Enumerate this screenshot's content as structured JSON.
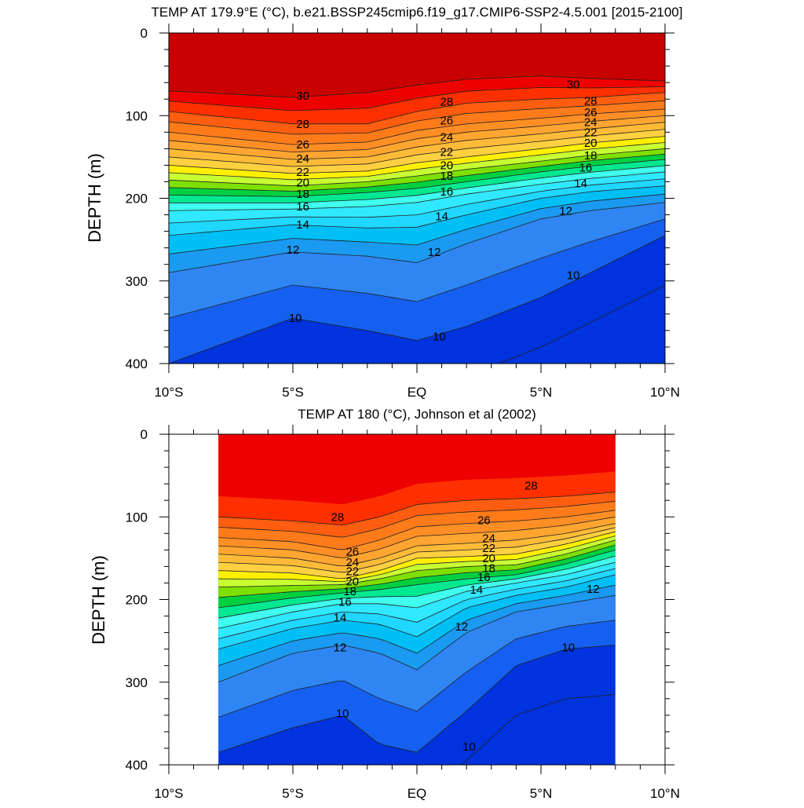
{
  "chart_data": [
    {
      "type": "contour",
      "title": "TEMP AT 179.9°E (°C), b.e21.BSSP245cmip6.f19_g17.CMIP6-SSP2-4.5.001 [2015-2100]",
      "ylabel": "DEPTH (m)",
      "xlabel": "",
      "xlim": [
        -10,
        10
      ],
      "ylim": [
        0,
        400
      ],
      "y_reversed": true,
      "x_ticks": [
        -10,
        -5,
        0,
        5,
        10
      ],
      "x_tick_labels": [
        "10°S",
        "5°S",
        "EQ",
        "5°N",
        "10°N"
      ],
      "y_ticks": [
        0,
        100,
        200,
        300,
        400
      ],
      "y_tick_labels": [
        "0",
        "100",
        "200",
        "300",
        "400"
      ],
      "contour_interval": 1,
      "levels_labeled": [
        10,
        12,
        14,
        16,
        18,
        20,
        22,
        24,
        26,
        28,
        30
      ],
      "data_xrange": [
        -10,
        10
      ],
      "isotherms": [
        {
          "level": 30,
          "x": [
            -10,
            -5,
            -2,
            0,
            2,
            5,
            7,
            10
          ],
          "depth": [
            70,
            78,
            72,
            63,
            56,
            52,
            55,
            58
          ]
        },
        {
          "level": 28,
          "x": [
            -10,
            -5,
            -2,
            0,
            2,
            5,
            7,
            10
          ],
          "depth": [
            95,
            110,
            110,
            95,
            85,
            80,
            78,
            72
          ]
        },
        {
          "level": 26,
          "x": [
            -10,
            -5,
            -2,
            0,
            2,
            5,
            7,
            10
          ],
          "depth": [
            120,
            135,
            132,
            118,
            110,
            103,
            98,
            92
          ]
        },
        {
          "level": 24,
          "x": [
            -10,
            -5,
            -2,
            0,
            2,
            5,
            7,
            10
          ],
          "depth": [
            140,
            153,
            150,
            138,
            130,
            122,
            116,
            108
          ]
        },
        {
          "level": 22,
          "x": [
            -10,
            -5,
            -2,
            0,
            2,
            5,
            7,
            10
          ],
          "depth": [
            160,
            170,
            167,
            157,
            150,
            140,
            133,
            125
          ]
        },
        {
          "level": 20,
          "x": [
            -10,
            -5,
            -2,
            0,
            2,
            5,
            7,
            10
          ],
          "depth": [
            178,
            185,
            180,
            173,
            165,
            155,
            148,
            140
          ]
        },
        {
          "level": 18,
          "x": [
            -10,
            -5,
            -2,
            0,
            2,
            5,
            7,
            10
          ],
          "depth": [
            196,
            198,
            193,
            188,
            180,
            168,
            161,
            153
          ]
        },
        {
          "level": 16,
          "x": [
            -10,
            -5,
            -2,
            0,
            2,
            5,
            7,
            10
          ],
          "depth": [
            215,
            213,
            210,
            205,
            195,
            183,
            176,
            168
          ]
        },
        {
          "level": 14,
          "x": [
            -10,
            -5,
            -2,
            0,
            2,
            5,
            7,
            10
          ],
          "depth": [
            245,
            232,
            236,
            235,
            220,
            200,
            192,
            185
          ]
        },
        {
          "level": 12,
          "x": [
            -10,
            -5,
            -2,
            0,
            2,
            5,
            7,
            10
          ],
          "depth": [
            290,
            265,
            270,
            278,
            255,
            225,
            215,
            205
          ]
        },
        {
          "level": 10,
          "x": [
            -10,
            -5,
            -2,
            0,
            2,
            5,
            7,
            10
          ],
          "depth": [
            400,
            345,
            360,
            372,
            355,
            320,
            290,
            245
          ]
        }
      ],
      "labels": [
        {
          "level": 30,
          "x": -4.6,
          "depth": 76
        },
        {
          "level": 30,
          "x": 6.3,
          "depth": 62
        },
        {
          "level": 28,
          "x": -4.6,
          "depth": 110
        },
        {
          "level": 28,
          "x": 1.2,
          "depth": 83
        },
        {
          "level": 28,
          "x": 7.0,
          "depth": 82
        },
        {
          "level": 26,
          "x": -4.6,
          "depth": 135
        },
        {
          "level": 26,
          "x": 1.2,
          "depth": 106
        },
        {
          "level": 26,
          "x": 7.0,
          "depth": 96
        },
        {
          "level": 24,
          "x": -4.6,
          "depth": 152
        },
        {
          "level": 24,
          "x": 1.2,
          "depth": 126
        },
        {
          "level": 24,
          "x": 7.0,
          "depth": 108
        },
        {
          "level": 22,
          "x": -4.6,
          "depth": 168
        },
        {
          "level": 22,
          "x": 1.2,
          "depth": 144
        },
        {
          "level": 22,
          "x": 7.0,
          "depth": 120
        },
        {
          "level": 20,
          "x": -4.6,
          "depth": 181
        },
        {
          "level": 20,
          "x": 1.2,
          "depth": 160
        },
        {
          "level": 20,
          "x": 7.0,
          "depth": 133
        },
        {
          "level": 18,
          "x": -4.6,
          "depth": 195
        },
        {
          "level": 18,
          "x": 1.2,
          "depth": 173
        },
        {
          "level": 18,
          "x": 7.0,
          "depth": 148
        },
        {
          "level": 16,
          "x": -4.6,
          "depth": 210
        },
        {
          "level": 16,
          "x": 1.2,
          "depth": 192
        },
        {
          "level": 16,
          "x": 6.8,
          "depth": 163
        },
        {
          "level": 14,
          "x": -4.6,
          "depth": 232
        },
        {
          "level": 14,
          "x": 1.0,
          "depth": 222
        },
        {
          "level": 14,
          "x": 6.6,
          "depth": 182
        },
        {
          "level": 12,
          "x": -5.0,
          "depth": 262
        },
        {
          "level": 12,
          "x": 0.7,
          "depth": 265
        },
        {
          "level": 12,
          "x": 6.0,
          "depth": 215
        },
        {
          "level": 10,
          "x": -4.9,
          "depth": 345
        },
        {
          "level": 10,
          "x": 0.9,
          "depth": 367
        },
        {
          "level": 10,
          "x": 6.3,
          "depth": 293
        }
      ]
    },
    {
      "type": "contour",
      "title": "TEMP AT 180 (°C), Johnson et al (2002)",
      "ylabel": "DEPTH (m)",
      "xlabel": "",
      "xlim": [
        -10,
        10
      ],
      "ylim": [
        0,
        400
      ],
      "y_reversed": true,
      "x_ticks": [
        -10,
        -5,
        0,
        5,
        10
      ],
      "x_tick_labels": [
        "10°S",
        "5°S",
        "EQ",
        "5°N",
        "10°N"
      ],
      "y_ticks": [
        0,
        100,
        200,
        300,
        400
      ],
      "y_tick_labels": [
        "0",
        "100",
        "200",
        "300",
        "400"
      ],
      "contour_interval": 1,
      "levels_labeled": [
        10,
        12,
        14,
        16,
        18,
        20,
        22,
        24,
        26,
        28
      ],
      "data_xrange": [
        -8,
        8
      ],
      "isotherms": [
        {
          "level": 28,
          "x": [
            -8,
            -5,
            -3,
            -1.5,
            0,
            2,
            4,
            6,
            8
          ],
          "depth": [
            100,
            105,
            110,
            100,
            85,
            80,
            78,
            75,
            70
          ]
        },
        {
          "level": 26,
          "x": [
            -8,
            -5,
            -3,
            -1.5,
            0,
            2,
            4,
            6,
            8
          ],
          "depth": [
            125,
            130,
            140,
            128,
            112,
            108,
            105,
            100,
            92
          ]
        },
        {
          "level": 24,
          "x": [
            -8,
            -5,
            -3,
            -1.5,
            0,
            2,
            4,
            6,
            8
          ],
          "depth": [
            145,
            150,
            160,
            150,
            135,
            132,
            128,
            120,
            108
          ]
        },
        {
          "level": 22,
          "x": [
            -8,
            -5,
            -3,
            -1.5,
            0,
            2,
            4,
            6,
            8
          ],
          "depth": [
            165,
            168,
            175,
            165,
            150,
            148,
            145,
            133,
            118
          ]
        },
        {
          "level": 20,
          "x": [
            -8,
            -5,
            -3,
            -1.5,
            0,
            2,
            4,
            6,
            8
          ],
          "depth": [
            185,
            183,
            182,
            175,
            165,
            160,
            158,
            145,
            128
          ]
        },
        {
          "level": 18,
          "x": [
            -8,
            -5,
            -3,
            -1.5,
            0,
            2,
            4,
            6,
            8
          ],
          "depth": [
            210,
            198,
            192,
            188,
            182,
            175,
            170,
            157,
            140
          ]
        },
        {
          "level": 16,
          "x": [
            -8,
            -5,
            -3,
            -1.5,
            0,
            2,
            4,
            6,
            8
          ],
          "depth": [
            235,
            215,
            205,
            205,
            210,
            190,
            180,
            170,
            155
          ]
        },
        {
          "level": 14,
          "x": [
            -8,
            -5,
            -3,
            -1.5,
            0,
            2,
            4,
            6,
            8
          ],
          "depth": [
            260,
            235,
            225,
            230,
            245,
            210,
            195,
            185,
            170
          ]
        },
        {
          "level": 12,
          "x": [
            -8,
            -5,
            -3,
            -1.5,
            0,
            2,
            4,
            6,
            8
          ],
          "depth": [
            300,
            265,
            255,
            265,
            285,
            240,
            215,
            205,
            195
          ]
        },
        {
          "level": 10,
          "x": [
            -8,
            -5,
            -3,
            -1.5,
            0,
            2,
            4,
            6,
            8
          ],
          "depth": [
            385,
            355,
            340,
            375,
            385,
            335,
            280,
            260,
            255
          ]
        }
      ],
      "labels": [
        {
          "level": 28,
          "x": -3.2,
          "depth": 100
        },
        {
          "level": 28,
          "x": 4.6,
          "depth": 62
        },
        {
          "level": 26,
          "x": -2.6,
          "depth": 142
        },
        {
          "level": 26,
          "x": 2.7,
          "depth": 104
        },
        {
          "level": 24,
          "x": -2.6,
          "depth": 155
        },
        {
          "level": 24,
          "x": 2.9,
          "depth": 126
        },
        {
          "level": 22,
          "x": -2.6,
          "depth": 166
        },
        {
          "level": 22,
          "x": 2.9,
          "depth": 138
        },
        {
          "level": 20,
          "x": -2.6,
          "depth": 178
        },
        {
          "level": 20,
          "x": 2.9,
          "depth": 150
        },
        {
          "level": 18,
          "x": -2.7,
          "depth": 190
        },
        {
          "level": 18,
          "x": 2.9,
          "depth": 162
        },
        {
          "level": 16,
          "x": -2.9,
          "depth": 203
        },
        {
          "level": 16,
          "x": 2.7,
          "depth": 173
        },
        {
          "level": 14,
          "x": -3.1,
          "depth": 222
        },
        {
          "level": 14,
          "x": 2.4,
          "depth": 188
        },
        {
          "level": 12,
          "x": -3.1,
          "depth": 258
        },
        {
          "level": 12,
          "x": 1.8,
          "depth": 233
        },
        {
          "level": 12,
          "x": 7.1,
          "depth": 187
        },
        {
          "level": 10,
          "x": -3.0,
          "depth": 338
        },
        {
          "level": 10,
          "x": 2.1,
          "depth": 378
        },
        {
          "level": 10,
          "x": 6.1,
          "depth": 258
        }
      ]
    }
  ],
  "colors": {
    "levels": [
      9,
      10,
      11,
      12,
      13,
      14,
      15,
      16,
      17,
      18,
      19,
      20,
      21,
      22,
      23,
      24,
      25,
      26,
      27,
      28,
      29,
      30
    ],
    "palette": [
      "#0033dd",
      "#1560f0",
      "#2f86f3",
      "#1a9af0",
      "#00bff5",
      "#20d7ff",
      "#30e8ff",
      "#40ffee",
      "#00e890",
      "#00d040",
      "#7ee000",
      "#c8ff33",
      "#fff000",
      "#ffd040",
      "#ffbb38",
      "#ffa530",
      "#ff8f25",
      "#ff7b1a",
      "#ff5e10",
      "#ff3000",
      "#ee0000",
      "#c80000"
    ],
    "line": "#222222"
  }
}
